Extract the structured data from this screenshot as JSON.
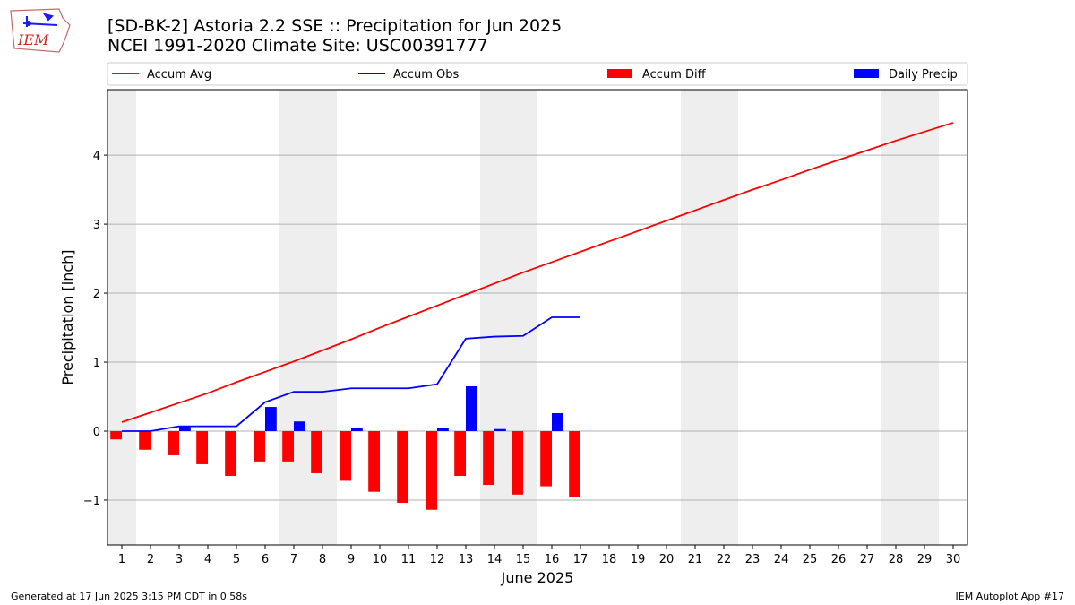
{
  "header": {
    "title_line1": "[SD-BK-2] Astoria 2.2 SSE :: Precipitation for Jun 2025",
    "title_line2": "NCEI 1991-2020 Climate Site: USC00391777"
  },
  "logo": {
    "text": "IEM",
    "color": "#cc2222",
    "accent": "#1a1aff"
  },
  "footer": {
    "left": "Generated at 17 Jun 2025 3:15 PM CDT in 0.58s",
    "right": "IEM Autoplot App #17"
  },
  "chart_data": {
    "type": "bar",
    "xlabel": "June 2025",
    "ylabel": "Precipitation [inch]",
    "xlim": [
      0.5,
      30.5
    ],
    "ylim": [
      -1.65,
      4.95
    ],
    "yticks": [
      -1,
      0,
      1,
      2,
      3,
      4
    ],
    "ytick_labels": [
      "−1",
      "0",
      "1",
      "2",
      "3",
      "4"
    ],
    "xticks": [
      1,
      2,
      3,
      4,
      5,
      6,
      7,
      8,
      9,
      10,
      11,
      12,
      13,
      14,
      15,
      16,
      17,
      18,
      19,
      20,
      21,
      22,
      23,
      24,
      25,
      26,
      27,
      28,
      29,
      30
    ],
    "weekend_spans": [
      [
        0.5,
        1.5
      ],
      [
        6.5,
        8.5
      ],
      [
        13.5,
        15.5
      ],
      [
        20.5,
        22.5
      ],
      [
        27.5,
        29.5
      ]
    ],
    "grid": "y",
    "legend_position": "top",
    "series": [
      {
        "name": "Accum Avg",
        "kind": "line",
        "color": "#ff0000",
        "x": [
          1,
          2,
          3,
          4,
          5,
          6,
          7,
          8,
          9,
          10,
          11,
          12,
          13,
          14,
          15,
          16,
          17,
          18,
          19,
          20,
          21,
          22,
          23,
          24,
          25,
          26,
          27,
          28,
          29,
          30
        ],
        "values": [
          0.13,
          0.27,
          0.41,
          0.55,
          0.71,
          0.86,
          1.01,
          1.17,
          1.33,
          1.5,
          1.66,
          1.82,
          1.98,
          2.14,
          2.3,
          2.45,
          2.6,
          2.75,
          2.9,
          3.05,
          3.2,
          3.35,
          3.5,
          3.64,
          3.79,
          3.93,
          4.07,
          4.21,
          4.34,
          4.47
        ]
      },
      {
        "name": "Accum Obs",
        "kind": "line",
        "color": "#0000ff",
        "x": [
          1,
          2,
          3,
          4,
          5,
          6,
          7,
          8,
          9,
          10,
          11,
          12,
          13,
          14,
          15,
          16,
          17
        ],
        "values": [
          0.0,
          0.0,
          0.07,
          0.07,
          0.07,
          0.42,
          0.57,
          0.57,
          0.62,
          0.62,
          0.62,
          0.68,
          1.34,
          1.37,
          1.38,
          1.65,
          1.65
        ]
      },
      {
        "name": "Accum Diff",
        "kind": "bar",
        "color": "#ff0000",
        "offset": -0.2,
        "x": [
          1,
          2,
          3,
          4,
          5,
          6,
          7,
          8,
          9,
          10,
          11,
          12,
          13,
          14,
          15,
          16,
          17
        ],
        "values": [
          -0.12,
          -0.27,
          -0.35,
          -0.48,
          -0.65,
          -0.44,
          -0.44,
          -0.61,
          -0.72,
          -0.88,
          -1.04,
          -1.14,
          -0.65,
          -0.78,
          -0.92,
          -0.8,
          -0.95
        ]
      },
      {
        "name": "Daily Precip",
        "kind": "bar",
        "color": "#0000ff",
        "offset": 0.2,
        "x": [
          1,
          2,
          3,
          4,
          5,
          6,
          7,
          8,
          9,
          10,
          11,
          12,
          13,
          14,
          15,
          16,
          17
        ],
        "values": [
          0.0,
          0.0,
          0.07,
          0.0,
          0.0,
          0.35,
          0.14,
          0.0,
          0.04,
          0.0,
          0.0,
          0.05,
          0.65,
          0.03,
          0.0,
          0.26,
          0.0
        ]
      }
    ]
  }
}
